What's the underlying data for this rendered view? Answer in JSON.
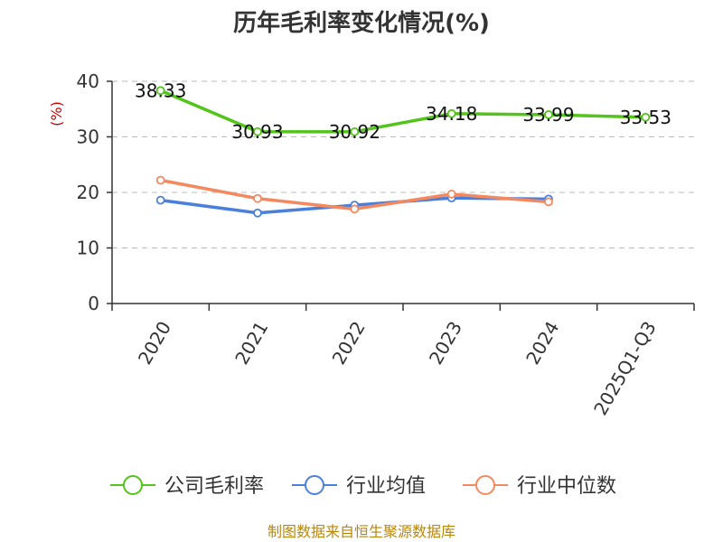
{
  "chart_data": {
    "type": "line",
    "title": "历年毛利率变化情况(%)",
    "ylabel": "(%)",
    "categories": [
      "2020",
      "2021",
      "2022",
      "2023",
      "2024",
      "2025Q1-Q3"
    ],
    "ylim": [
      0,
      40
    ],
    "yticks": [
      0,
      10,
      20,
      30,
      40
    ],
    "grid": true,
    "legend_position": "bottom",
    "series": [
      {
        "name": "公司毛利率",
        "color": "#52c41a",
        "values": [
          38.33,
          30.93,
          30.92,
          34.18,
          33.99,
          33.53
        ],
        "labels": [
          "38.33",
          "30.93",
          "30.92",
          "34.18",
          "33.99",
          "33.53"
        ]
      },
      {
        "name": "行业均值",
        "color": "#4a7fdc",
        "values": [
          18.6,
          16.3,
          17.7,
          19.0,
          18.8,
          null
        ]
      },
      {
        "name": "行业中位数",
        "color": "#f4895f",
        "values": [
          22.2,
          18.9,
          17.0,
          19.7,
          18.3,
          null
        ]
      }
    ]
  },
  "footer": {
    "source": "制图数据来自恒生聚源数据库"
  }
}
